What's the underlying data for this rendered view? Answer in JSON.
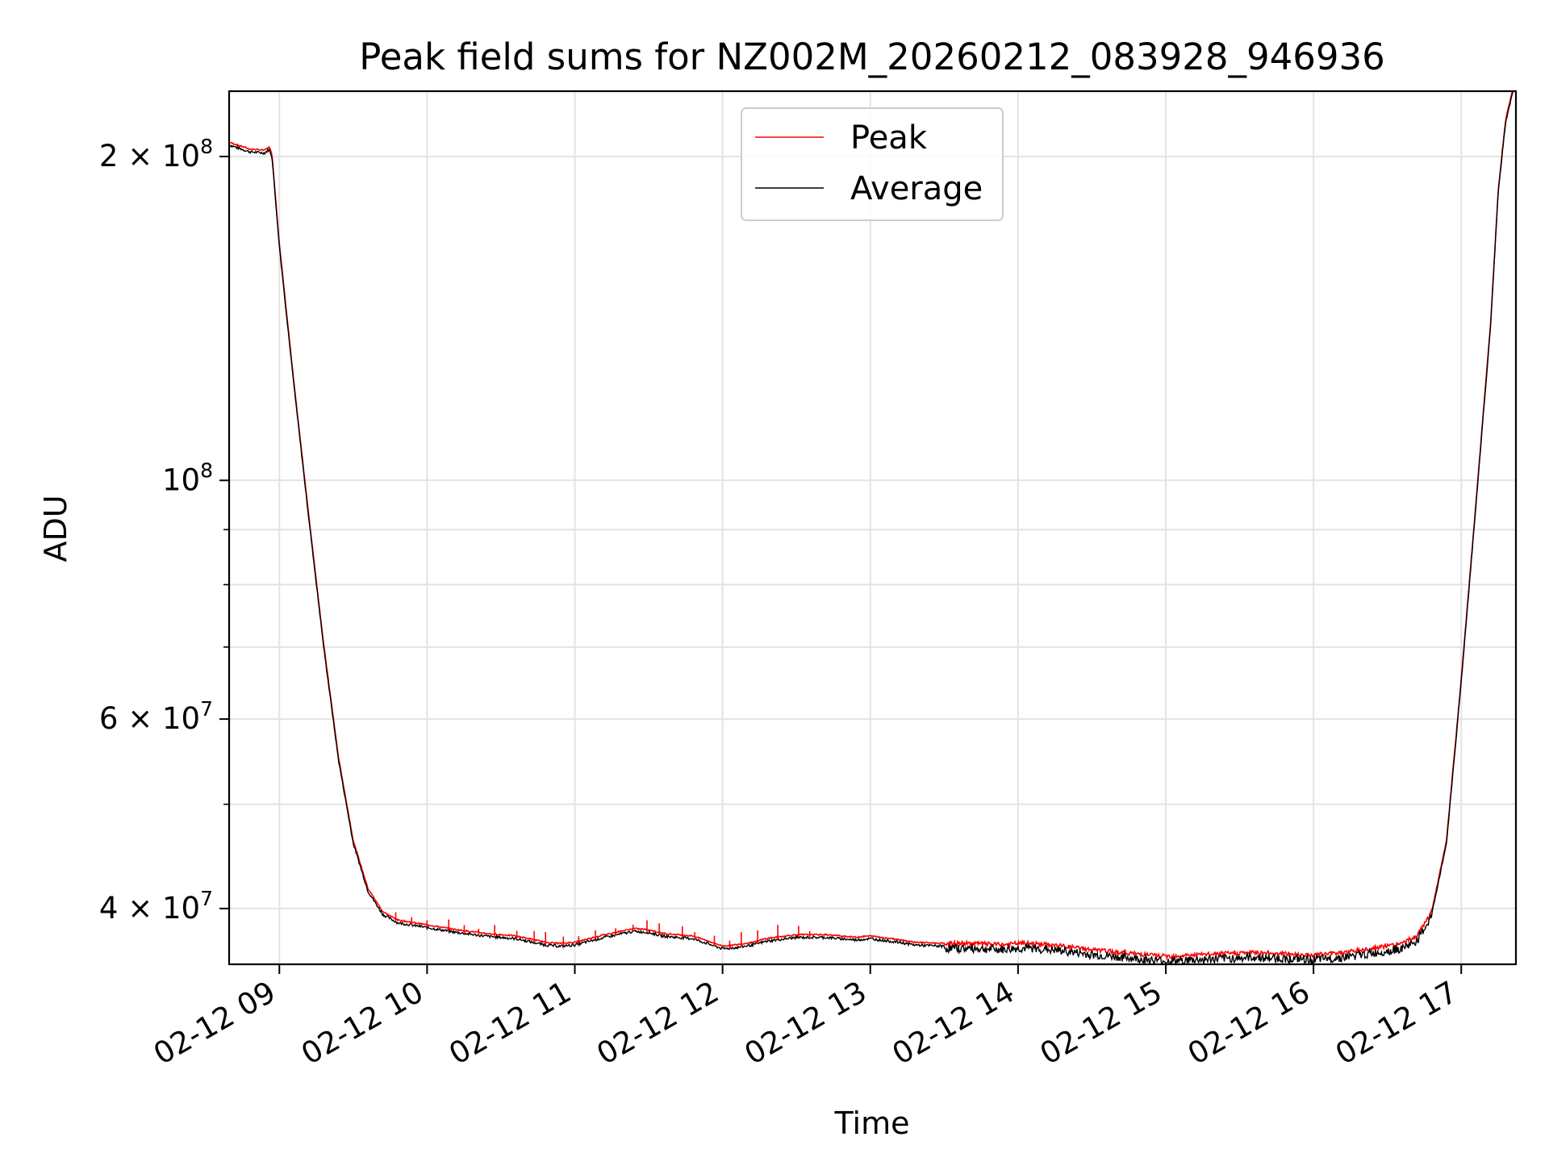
{
  "chart_data": {
    "type": "line",
    "title": "Peak field sums for NZ002M_20260212_083928_946936",
    "xlabel": "Time",
    "ylabel": "ADU",
    "yscale": "log",
    "x_unit": "hours since 02-12 09:00",
    "xlim": [
      -0.34,
      8.37
    ],
    "ylim": [
      35500000,
      230000000
    ],
    "grid": true,
    "legend_loc": "upper center",
    "x_ticks": [
      {
        "value": 0,
        "label": "02-12 09"
      },
      {
        "value": 1,
        "label": "02-12 10"
      },
      {
        "value": 2,
        "label": "02-12 11"
      },
      {
        "value": 3,
        "label": "02-12 12"
      },
      {
        "value": 4,
        "label": "02-12 13"
      },
      {
        "value": 5,
        "label": "02-12 14"
      },
      {
        "value": 6,
        "label": "02-12 15"
      },
      {
        "value": 7,
        "label": "02-12 16"
      },
      {
        "value": 8,
        "label": "02-12 17"
      }
    ],
    "y_major_ticks": [
      {
        "value": 40000000,
        "mantissa": "4",
        "exp": "7"
      },
      {
        "value": 60000000,
        "mantissa": "6",
        "exp": "7"
      },
      {
        "value": 100000000,
        "mantissa": "",
        "exp": "8"
      },
      {
        "value": 200000000,
        "mantissa": "2",
        "exp": "8"
      }
    ],
    "y_minor_ticks": [
      50000000,
      70000000,
      80000000,
      90000000
    ],
    "series": [
      {
        "name": "Peak",
        "color": "#ff0000"
      },
      {
        "name": "Average",
        "color": "#000000"
      }
    ],
    "average_curve": {
      "x": [
        -0.34,
        -0.2,
        -0.1,
        -0.07,
        -0.05,
        0.0,
        0.1,
        0.2,
        0.3,
        0.4,
        0.5,
        0.6,
        0.7,
        0.8,
        0.9,
        1.0,
        1.2,
        1.4,
        1.6,
        1.8,
        1.9,
        2.0,
        2.2,
        2.4,
        2.5,
        2.6,
        2.8,
        2.9,
        3.0,
        3.1,
        3.2,
        3.3,
        3.5,
        3.7,
        3.9,
        4.0,
        4.2,
        4.3,
        4.5,
        4.7,
        4.9,
        5.0,
        5.1,
        5.3,
        5.5,
        5.7,
        5.9,
        6.0,
        6.2,
        6.4,
        6.6,
        6.8,
        7.0,
        7.2,
        7.4,
        7.6,
        7.7,
        7.8,
        7.9,
        8.0,
        8.1,
        8.2,
        8.25,
        8.3,
        8.35
      ],
      "y": [
        205000000,
        202000000,
        201500000,
        203000000,
        200000000,
        165000000,
        122000000,
        92000000,
        70000000,
        55000000,
        46000000,
        41500000,
        39500000,
        38800000,
        38600000,
        38400000,
        38000000,
        37700000,
        37500000,
        37000000,
        36900000,
        37000000,
        37600000,
        38100000,
        38000000,
        37700000,
        37500000,
        37100000,
        36700000,
        36800000,
        37000000,
        37300000,
        37600000,
        37600000,
        37400000,
        37500000,
        37200000,
        37000000,
        36900000,
        36900000,
        36800000,
        36900000,
        36900000,
        36700000,
        36400000,
        36200000,
        36000000,
        35900000,
        36000000,
        36100000,
        36200000,
        36100000,
        36000000,
        36200000,
        36500000,
        36900000,
        37500000,
        39500000,
        46000000,
        65000000,
        95000000,
        140000000,
        185000000,
        215000000,
        230000000
      ]
    },
    "peak_offset_fraction": 0.006,
    "peak_spike_count": 26
  }
}
